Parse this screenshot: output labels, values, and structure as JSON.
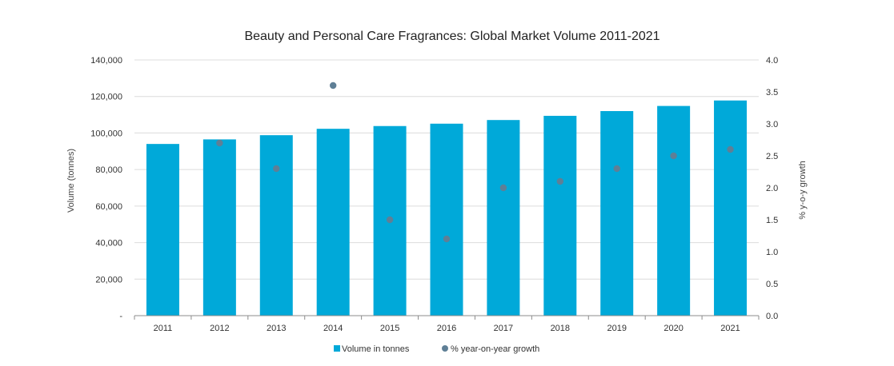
{
  "chart_data": {
    "type": "bar",
    "title": "Beauty and Personal Care Fragrances: Global Market Volume 2011-2021",
    "categories": [
      "2011",
      "2012",
      "2013",
      "2014",
      "2015",
      "2016",
      "2017",
      "2018",
      "2019",
      "2020",
      "2021"
    ],
    "series": [
      {
        "name": "Volume in tonnes",
        "type": "bar",
        "axis": "left",
        "color": "#00a9d9",
        "values": [
          94000,
          96500,
          98800,
          102300,
          103800,
          105100,
          107100,
          109400,
          112000,
          114800,
          117800
        ]
      },
      {
        "name": "% year-on-year growth",
        "type": "scatter",
        "axis": "right",
        "color": "#5f7f96",
        "values": [
          null,
          2.7,
          2.3,
          3.6,
          1.5,
          1.2,
          2.0,
          2.1,
          2.3,
          2.5,
          2.6
        ]
      }
    ],
    "ylabel": "Volume (tonnes)",
    "ylabel_right": "% y-o-y growth",
    "ylim": [
      0,
      140000
    ],
    "ylim_right": [
      0,
      4.0
    ],
    "yticks": [
      "-",
      "20,000",
      "40,000",
      "60,000",
      "80,000",
      "100,000",
      "120,000",
      "140,000"
    ],
    "yticks_right": [
      "0.0",
      "0.5",
      "1.0",
      "1.5",
      "2.0",
      "2.5",
      "3.0",
      "3.5",
      "4.0"
    ],
    "grid": true,
    "legend_position": "bottom"
  }
}
